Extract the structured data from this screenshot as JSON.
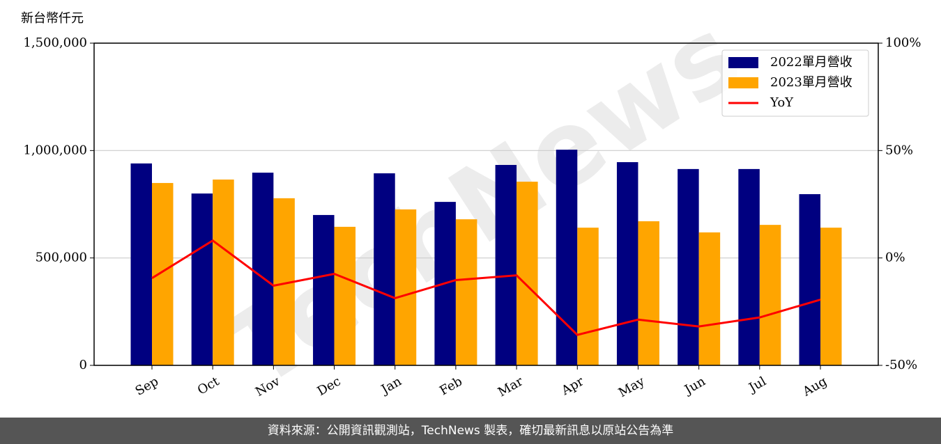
{
  "chart_data": {
    "type": "bar_line",
    "y_label": "新台幣仟元",
    "watermark": "TechNews",
    "categories": [
      "Sep",
      "Oct",
      "Nov",
      "Dec",
      "Jan",
      "Feb",
      "Mar",
      "Apr",
      "May",
      "Jun",
      "Jul",
      "Aug"
    ],
    "series": [
      {
        "name": "2022單月營收",
        "color": "#000080",
        "type": "bar",
        "values": [
          940000,
          800000,
          897000,
          700000,
          894000,
          761000,
          933000,
          1004000,
          946000,
          914000,
          914000,
          797000
        ]
      },
      {
        "name": "2023單月營收",
        "color": "#ffa500",
        "type": "bar",
        "values": [
          849000,
          865000,
          778000,
          645000,
          726000,
          680000,
          855000,
          641000,
          671000,
          619000,
          654000,
          641000
        ]
      },
      {
        "name": "YoY",
        "color": "#ff0000",
        "type": "line",
        "axis": "y2",
        "values": [
          -9.4,
          8.1,
          -12.9,
          -7.4,
          -18.7,
          -10.3,
          -8.1,
          -35.8,
          -28.7,
          -31.9,
          -27.7,
          -19.4
        ]
      }
    ],
    "ylim": [
      0,
      1500000
    ],
    "yticks": [
      0,
      {
        "value": 500000,
        "label": "500,000"
      },
      {
        "value": 1000000,
        "label": "1,000,000"
      },
      {
        "value": 1500000,
        "label": "1,500,000"
      }
    ],
    "y2lim": [
      -50,
      100
    ],
    "y2ticks": [
      {
        "value": -50,
        "label": "-50%"
      },
      {
        "value": 0,
        "label": "0%"
      },
      {
        "value": 50,
        "label": "50%"
      },
      {
        "value": 100,
        "label": "100%"
      }
    ],
    "grid": true,
    "legend": "upper right"
  },
  "footer": "資料來源：公開資訊觀測站，TechNews 製表，確切最新訊息以原站公告為準"
}
